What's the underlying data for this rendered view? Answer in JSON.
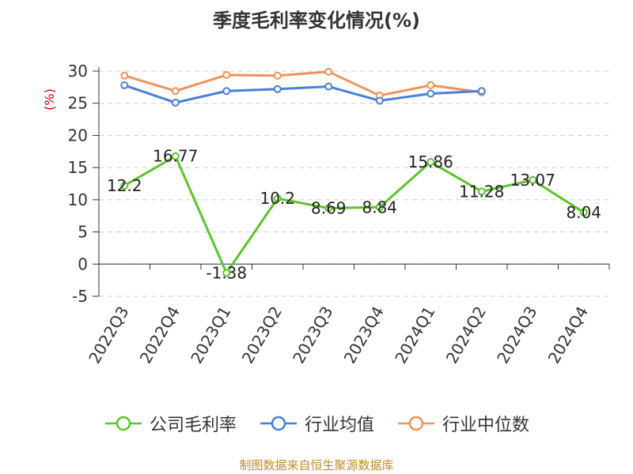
{
  "chart_data": {
    "type": "line",
    "title": "季度毛利率变化情况(%)",
    "ylabel": "(%)",
    "ylim": [
      -5,
      30
    ],
    "yticks": [
      -5,
      0,
      5,
      10,
      15,
      20,
      25,
      30
    ],
    "grid": true,
    "legend_position": "bottom",
    "categories": [
      "2022Q3",
      "2022Q4",
      "2023Q1",
      "2023Q2",
      "2023Q3",
      "2023Q4",
      "2024Q1",
      "2024Q2",
      "2024Q3",
      "2024Q4"
    ],
    "series": [
      {
        "name": "公司毛利率",
        "color": "#5cc42b",
        "values": [
          12.2,
          16.77,
          -1.38,
          10.2,
          8.69,
          8.84,
          15.86,
          11.28,
          13.07,
          8.04
        ],
        "labels": [
          "12.2",
          "16.77",
          "-1.38",
          "10.2",
          "8.69",
          "8.84",
          "15.86",
          "11.28",
          "13.07",
          "8.04"
        ]
      },
      {
        "name": "行业均值",
        "color": "#4a7fd8",
        "values": [
          27.8,
          25.1,
          26.9,
          27.2,
          27.6,
          25.4,
          26.5,
          26.9,
          null,
          null
        ]
      },
      {
        "name": "行业中位数",
        "color": "#f0925c",
        "values": [
          29.3,
          26.9,
          29.4,
          29.3,
          29.9,
          26.2,
          27.8,
          26.7,
          null,
          null
        ]
      }
    ]
  },
  "footer": {
    "source": "制图数据来自恒生聚源数据库"
  }
}
